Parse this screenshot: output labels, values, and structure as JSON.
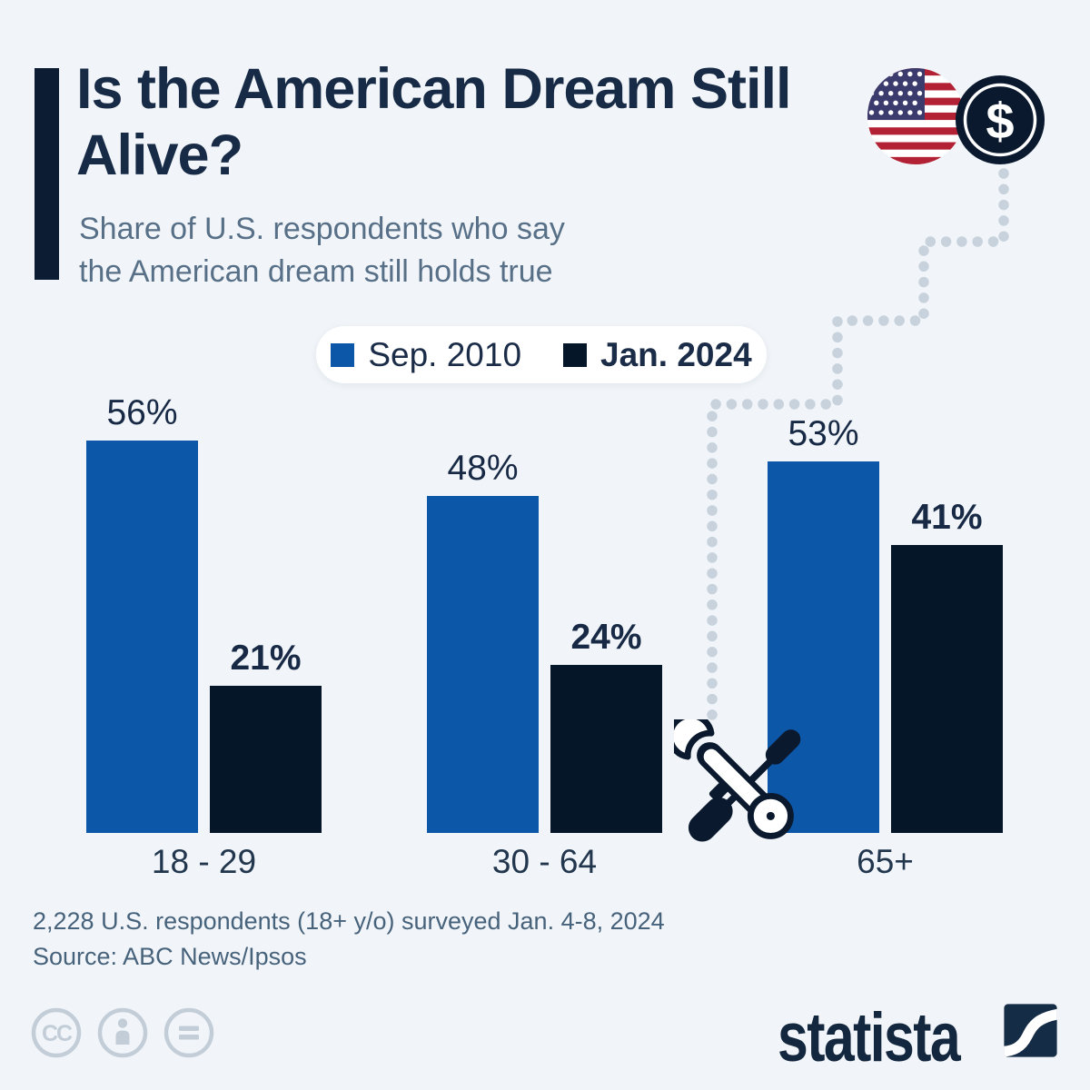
{
  "header": {
    "title": "Is the American Dream Still Alive?",
    "subtitle": "Share of U.S. respondents who say the American dream still holds true"
  },
  "chart_data": {
    "type": "bar",
    "categories": [
      "18 - 29",
      "30 - 64",
      "65+"
    ],
    "series": [
      {
        "name": "Sep. 2010",
        "values": [
          56,
          48,
          53
        ],
        "color": "#0C57A8"
      },
      {
        "name": "Jan. 2024",
        "values": [
          21,
          24,
          41
        ],
        "color": "#051628"
      }
    ],
    "value_suffix": "%",
    "title": "Is the American Dream Still Alive?",
    "subtitle": "Share of U.S. respondents who say the American dream still holds true",
    "ylim": [
      0,
      60
    ],
    "grid": false,
    "legend_position": "top-center",
    "value_labels": "above-bars"
  },
  "footer": {
    "note": "2,228 U.S. respondents (18+ y/o) surveyed Jan. 4-8, 2024",
    "source": "Source: ABC News/Ipsos"
  },
  "branding": {
    "logo_text": "statista"
  },
  "icons": {
    "flag": "us-flag-icon",
    "coin": "dollar-coin-icon",
    "dollar_sign": "$",
    "tools": "wrench-screwdriver-icon",
    "cc_label": "CC",
    "license": [
      "cc-icon",
      "attribution-person-icon",
      "no-derivatives-equals-icon"
    ]
  },
  "colors": {
    "background": "#F1F5F9",
    "series_2010": "#0C57A8",
    "series_2024": "#051628",
    "title_text": "#182B46",
    "subtitle_text": "#587087",
    "footer_text": "#47627B",
    "dotted_path": "#C7D2DC",
    "license_icons": "#C2CDD8",
    "flag_red": "#B22234",
    "flag_canton": "#3C3B6E"
  }
}
